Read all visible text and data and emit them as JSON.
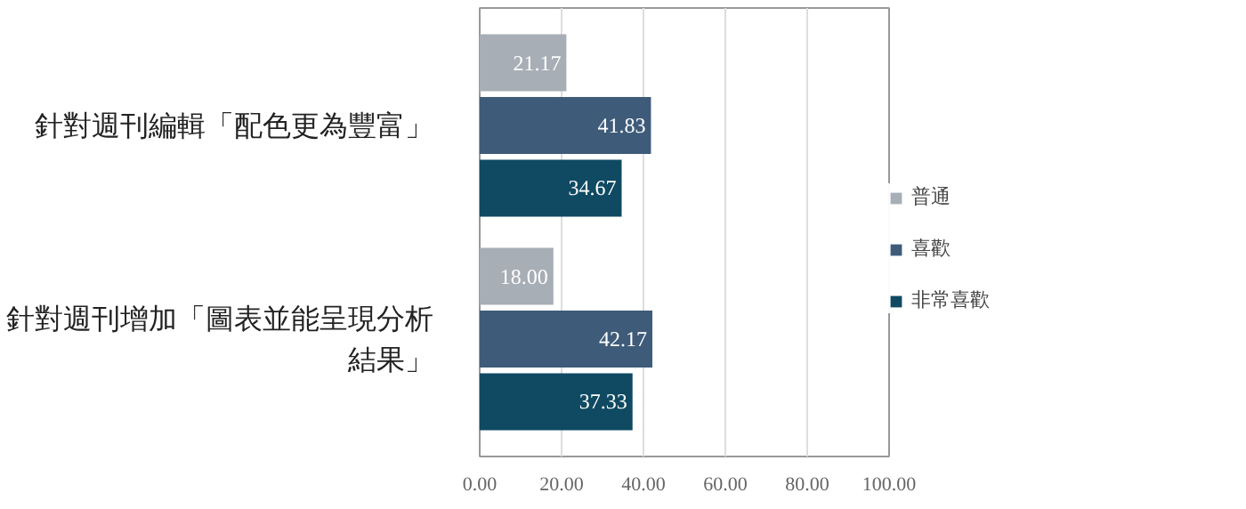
{
  "chart_data": {
    "type": "bar",
    "orientation": "horizontal",
    "categories": [
      "針對週刊編輯「配色更為豐富」",
      "針對週刊增加「圖表並能呈現分析結果」"
    ],
    "series": [
      {
        "name": "普通",
        "color": "#a7aeb5",
        "values": [
          21.17,
          18.0
        ]
      },
      {
        "name": "喜歡",
        "color": "#3e5b79",
        "values": [
          41.83,
          42.17
        ]
      },
      {
        "name": "非常喜歡",
        "color": "#0f4a62",
        "values": [
          34.67,
          37.33
        ]
      }
    ],
    "xlim": [
      0,
      100
    ],
    "xticks": [
      {
        "value": 0,
        "label": "0.00"
      },
      {
        "value": 20,
        "label": "20.00"
      },
      {
        "value": 40,
        "label": "40.00"
      },
      {
        "value": 60,
        "label": "60.00"
      },
      {
        "value": 80,
        "label": "80.00"
      },
      {
        "value": 100,
        "label": "100.00"
      }
    ],
    "value_labels": [
      [
        "21.17",
        "18.00"
      ],
      [
        "41.83",
        "42.17"
      ],
      [
        "34.67",
        "37.33"
      ]
    ],
    "grid": "x",
    "legend": "right"
  }
}
